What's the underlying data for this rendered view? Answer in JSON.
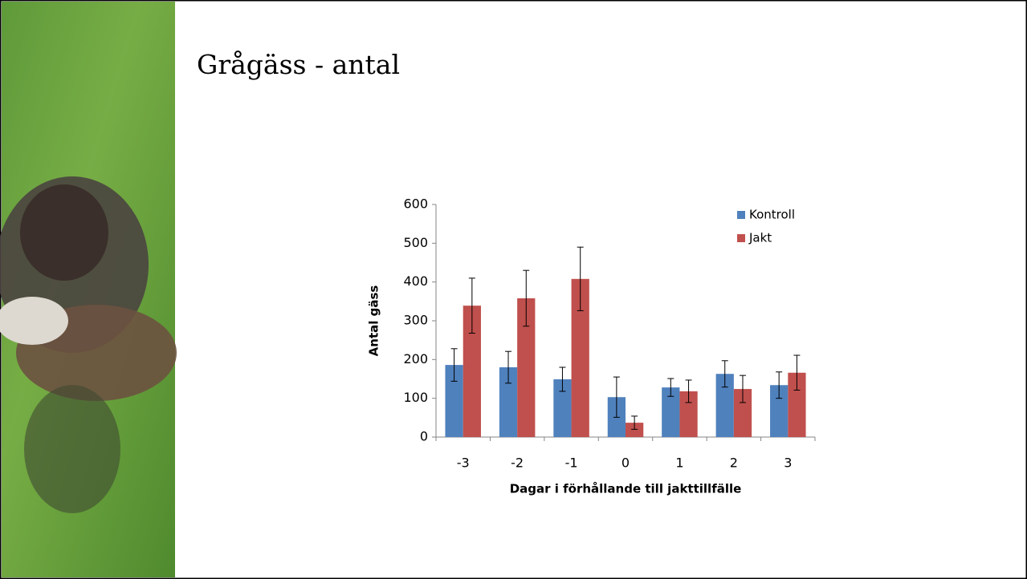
{
  "slide": {
    "title": "Grågäss - antal"
  },
  "chart_data": {
    "type": "bar",
    "categories": [
      "-3",
      "-2",
      "-1",
      "0",
      "1",
      "2",
      "3"
    ],
    "series": [
      {
        "name": "Kontroll",
        "color": "#4f81bd",
        "values": [
          186,
          180,
          149,
          103,
          128,
          163,
          134
        ],
        "errors": [
          42,
          41,
          31,
          52,
          23,
          34,
          34
        ]
      },
      {
        "name": "Jakt",
        "color": "#c0504d",
        "values": [
          339,
          358,
          408,
          37,
          118,
          124,
          166
        ],
        "errors": [
          71,
          72,
          82,
          17,
          29,
          35,
          45
        ]
      }
    ],
    "ylim": [
      0,
      600
    ],
    "yticks": [
      0,
      100,
      200,
      300,
      400,
      500,
      600
    ],
    "ylabel": "Antal gäss",
    "xlabel": "Dagar i förhållande till jakttillfälle",
    "legend": "top-right"
  }
}
